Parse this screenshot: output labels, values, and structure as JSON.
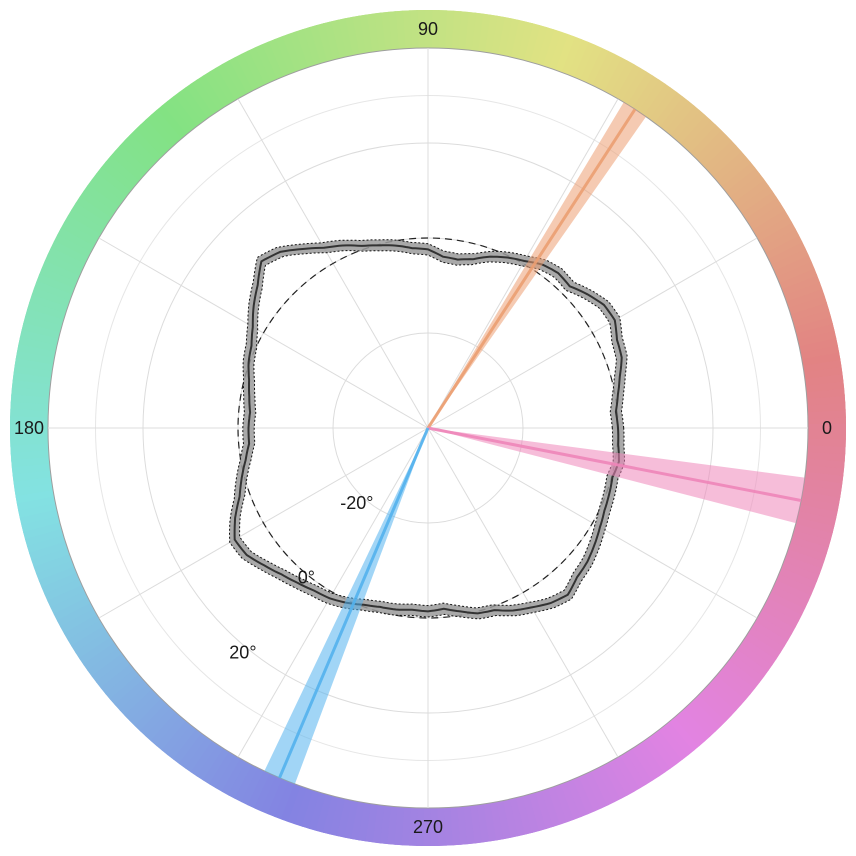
{
  "chart_data": {
    "type": "polar",
    "angle_labels": [
      "0",
      "90",
      "180",
      "270"
    ],
    "angle_label_positions_deg": [
      0,
      90,
      180,
      270
    ],
    "radial_ticks": [
      {
        "value": -20,
        "label": "-20°"
      },
      {
        "value": 0,
        "label": "0°"
      },
      {
        "value": 20,
        "label": "20°"
      }
    ],
    "radial_range": [
      -40,
      40
    ],
    "reference_ring_value": 0,
    "grid": true,
    "hue_ring": true,
    "profile": {
      "name": "",
      "color": "#333333",
      "band_color": "#9a9a9a",
      "points": [
        {
          "angle": 0,
          "value": 0.0
        },
        {
          "angle": 5,
          "value": -0.3
        },
        {
          "angle": 10,
          "value": 0.6
        },
        {
          "angle": 15,
          "value": 1.8
        },
        {
          "angle": 20,
          "value": 3.4
        },
        {
          "angle": 25,
          "value": 3.9
        },
        {
          "angle": 30,
          "value": 5.4
        },
        {
          "angle": 35,
          "value": 5.2
        },
        {
          "angle": 40,
          "value": 3.8
        },
        {
          "angle": 45,
          "value": 2.2
        },
        {
          "angle": 50,
          "value": 2.6
        },
        {
          "angle": 55,
          "value": 2.0
        },
        {
          "angle": 60,
          "value": 0.6
        },
        {
          "angle": 65,
          "value": -0.4
        },
        {
          "angle": 70,
          "value": -1.6
        },
        {
          "angle": 75,
          "value": -3.2
        },
        {
          "angle": 80,
          "value": -4.0
        },
        {
          "angle": 85,
          "value": -3.8
        },
        {
          "angle": 90,
          "value": -2.4
        },
        {
          "angle": 95,
          "value": -2.0
        },
        {
          "angle": 100,
          "value": -1.0
        },
        {
          "angle": 105,
          "value": -0.2
        },
        {
          "angle": 110,
          "value": 0.8
        },
        {
          "angle": 115,
          "value": 2.4
        },
        {
          "angle": 120,
          "value": 3.8
        },
        {
          "angle": 125,
          "value": 6.0
        },
        {
          "angle": 130,
          "value": 8.4
        },
        {
          "angle": 135,
          "value": 9.6
        },
        {
          "angle": 140,
          "value": 6.8
        },
        {
          "angle": 145,
          "value": 4.8
        },
        {
          "angle": 150,
          "value": 2.6
        },
        {
          "angle": 155,
          "value": 1.0
        },
        {
          "angle": 160,
          "value": 0.2
        },
        {
          "angle": 165,
          "value": -1.0
        },
        {
          "angle": 170,
          "value": -1.8
        },
        {
          "angle": 175,
          "value": -2.4
        },
        {
          "angle": 180,
          "value": -2.2
        },
        {
          "angle": 185,
          "value": -2.2
        },
        {
          "angle": 190,
          "value": -1.0
        },
        {
          "angle": 195,
          "value": 0.6
        },
        {
          "angle": 200,
          "value": 2.2
        },
        {
          "angle": 205,
          "value": 4.8
        },
        {
          "angle": 210,
          "value": 7.0
        },
        {
          "angle": 215,
          "value": 6.6
        },
        {
          "angle": 220,
          "value": 5.0
        },
        {
          "angle": 225,
          "value": 3.6
        },
        {
          "angle": 230,
          "value": 2.6
        },
        {
          "angle": 235,
          "value": 1.8
        },
        {
          "angle": 240,
          "value": 1.4
        },
        {
          "angle": 245,
          "value": 0.6
        },
        {
          "angle": 250,
          "value": -0.4
        },
        {
          "angle": 255,
          "value": -1.0
        },
        {
          "angle": 260,
          "value": -1.2
        },
        {
          "angle": 265,
          "value": -1.6
        },
        {
          "angle": 270,
          "value": -1.4
        },
        {
          "angle": 275,
          "value": -1.8
        },
        {
          "angle": 280,
          "value": -0.8
        },
        {
          "angle": 285,
          "value": 0.4
        },
        {
          "angle": 290,
          "value": 0.8
        },
        {
          "angle": 295,
          "value": 2.4
        },
        {
          "angle": 300,
          "value": 3.6
        },
        {
          "angle": 305,
          "value": 5.0
        },
        {
          "angle": 310,
          "value": 5.8
        },
        {
          "angle": 315,
          "value": 4.4
        },
        {
          "angle": 320,
          "value": 3.8
        },
        {
          "angle": 325,
          "value": 2.8
        },
        {
          "angle": 330,
          "value": 1.8
        },
        {
          "angle": 335,
          "value": 1.0
        },
        {
          "angle": 340,
          "value": 0.6
        },
        {
          "angle": 345,
          "value": 0.2
        },
        {
          "angle": 350,
          "value": 0.8
        },
        {
          "angle": 355,
          "value": 0.2
        }
      ]
    },
    "directions": [
      {
        "angle": 57,
        "ci": [
          55,
          59
        ],
        "color": "#ec9f72"
      },
      {
        "angle": 349,
        "ci": [
          345.5,
          352.5
        ],
        "color": "#ef86b9"
      },
      {
        "angle": 247,
        "ci": [
          244.5,
          249.5
        ],
        "color": "#54b2ee"
      }
    ]
  }
}
